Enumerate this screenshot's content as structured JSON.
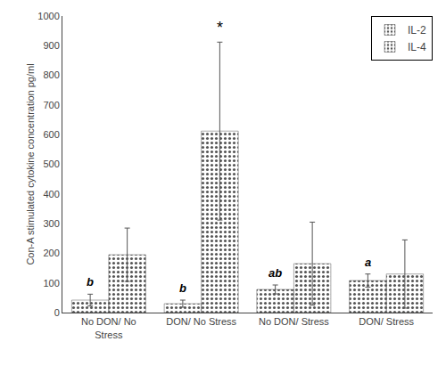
{
  "chart_data": {
    "type": "bar",
    "ylabel": "Con-A stimulated cytokine concentration pg/ml",
    "categories": [
      "No DON/ No\nStress",
      "DON/ No Stress",
      "No DON/ Stress",
      "DON/ Stress"
    ],
    "series": [
      {
        "name": "IL-2",
        "color": "#2a2a2a",
        "values": [
          42,
          30,
          78,
          108
        ],
        "errors": [
          20,
          12,
          15,
          22
        ],
        "annotations": [
          "b",
          "b",
          "ab",
          "a"
        ]
      },
      {
        "name": "IL-4",
        "color": "#d0d0d0",
        "values": [
          195,
          612,
          165,
          130
        ],
        "errors": [
          90,
          300,
          140,
          115
        ],
        "annotations": [
          null,
          "*",
          null,
          null
        ]
      }
    ],
    "ylim": [
      0,
      1000
    ],
    "yticks": [
      0,
      100,
      200,
      300,
      400,
      500,
      600,
      700,
      800,
      900,
      1000
    ],
    "grid": false,
    "legend": "upper right"
  }
}
